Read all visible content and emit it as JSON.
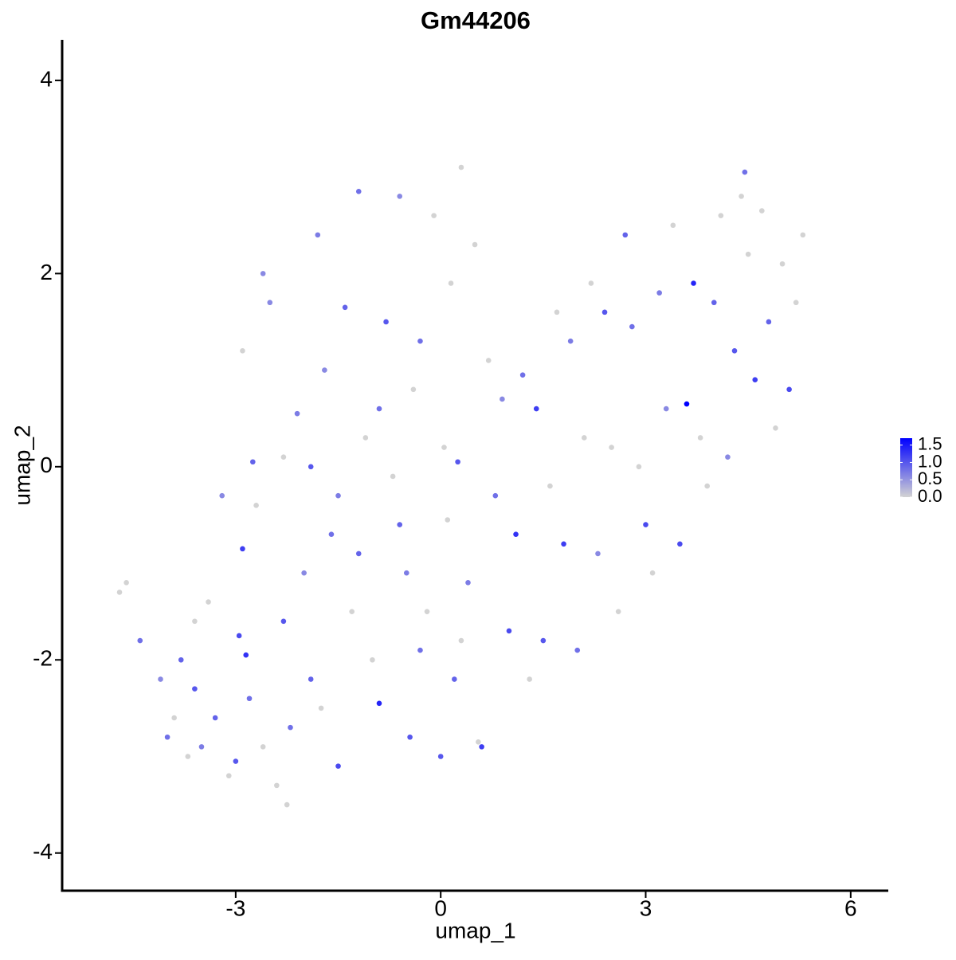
{
  "chart_data": {
    "type": "scatter",
    "title": "Gm44206",
    "x_label": "umap_1",
    "y_label": "umap_2",
    "xlim": [
      -5.54,
      6.55
    ],
    "ylim": [
      -4.39,
      4.42
    ],
    "xticks": [
      -3,
      0,
      3,
      6
    ],
    "yticks": [
      -4,
      -2,
      0,
      2,
      4
    ],
    "color_low": "#d3d3d3",
    "color_high": "#0000ff",
    "colorbar_lim": [
      0,
      1.7
    ],
    "colorbar_ticks": [
      {
        "value": 0,
        "label": "0.0"
      },
      0.5,
      {
        "value": 1,
        "label": "1.0"
      },
      1.5
    ],
    "x": [
      -4.7,
      -4.6,
      -4.4,
      -4.1,
      -3.9,
      -3.8,
      -3.6,
      -3.5,
      -3.4,
      -3.3,
      -3.2,
      -3.1,
      -3.0,
      -2.95,
      -2.9,
      -2.85,
      -2.8,
      -2.75,
      -2.7,
      -2.6,
      -2.5,
      -2.4,
      -2.3,
      -2.25,
      -2.2,
      -2.1,
      -2.0,
      -1.9,
      -1.8,
      -1.75,
      -1.7,
      -1.6,
      -1.5,
      -1.4,
      -1.3,
      -1.2,
      -1.1,
      -1.0,
      -0.9,
      -0.8,
      -0.7,
      -0.6,
      -0.5,
      -0.45,
      -0.4,
      -0.3,
      -0.2,
      -0.1,
      0.0,
      0.05,
      0.1,
      0.15,
      0.2,
      0.25,
      0.3,
      0.4,
      0.5,
      0.55,
      0.6,
      0.7,
      0.8,
      0.9,
      1.0,
      1.1,
      1.2,
      1.3,
      1.4,
      1.5,
      1.6,
      1.7,
      1.8,
      1.9,
      2.0,
      2.1,
      2.2,
      2.3,
      2.4,
      2.5,
      2.6,
      2.7,
      2.8,
      2.9,
      3.0,
      3.1,
      3.2,
      3.3,
      3.4,
      3.5,
      3.6,
      3.7,
      3.8,
      3.9,
      4.0,
      4.1,
      4.2,
      4.3,
      4.4,
      4.45,
      4.5,
      4.6,
      4.7,
      4.8,
      4.9,
      5.0,
      5.1,
      5.2,
      5.3,
      -2.9,
      -2.6,
      -2.3,
      -1.9,
      -1.5,
      -1.2,
      -0.9,
      -0.6,
      -0.3,
      0.3,
      -3.6,
      -4.0,
      -3.7
    ],
    "y": [
      -1.3,
      -1.2,
      -1.8,
      -2.2,
      -2.6,
      -2.0,
      -2.3,
      -2.9,
      -1.4,
      -2.6,
      -0.3,
      -3.2,
      -3.05,
      -1.75,
      -0.85,
      -1.95,
      -2.4,
      0.05,
      -0.4,
      -2.9,
      1.7,
      -3.3,
      -1.6,
      -3.5,
      -2.7,
      0.55,
      -1.1,
      -2.2,
      2.4,
      -2.5,
      1.0,
      -0.7,
      -3.1,
      1.65,
      -1.5,
      2.85,
      0.3,
      -2.0,
      -2.45,
      1.5,
      -0.1,
      2.8,
      -1.1,
      -2.8,
      0.8,
      1.3,
      -1.5,
      2.6,
      -3.0,
      0.2,
      -0.55,
      1.9,
      -2.2,
      0.05,
      3.1,
      -1.2,
      2.3,
      -2.85,
      -2.9,
      1.1,
      -0.3,
      0.7,
      -1.7,
      -0.7,
      0.95,
      -2.2,
      0.6,
      -1.8,
      -0.2,
      1.6,
      -0.8,
      1.3,
      -1.9,
      0.3,
      1.9,
      -0.9,
      1.6,
      0.2,
      -1.5,
      2.4,
      1.45,
      0.0,
      -0.6,
      -1.1,
      1.8,
      0.6,
      2.5,
      -0.8,
      0.65,
      1.9,
      0.3,
      -0.2,
      1.7,
      2.6,
      0.1,
      1.2,
      2.8,
      3.05,
      2.2,
      0.9,
      2.65,
      1.5,
      0.4,
      2.1,
      0.8,
      1.7,
      2.4,
      1.2,
      2.0,
      0.1,
      0.0,
      -0.3,
      -0.9,
      0.6,
      -0.6,
      -1.9,
      -1.8,
      -1.6,
      -2.8,
      -3.0
    ],
    "values": [
      0,
      0,
      0.8,
      0.6,
      0,
      0.9,
      1.0,
      0.7,
      0,
      0.9,
      0.6,
      0,
      1.0,
      1.1,
      1.2,
      1.3,
      0.8,
      0.9,
      0,
      0,
      0.6,
      0,
      1.0,
      0,
      0.8,
      0.7,
      0.6,
      0.9,
      0.7,
      0,
      0.6,
      0.8,
      1.1,
      0.9,
      0,
      0.8,
      0,
      0,
      1.4,
      1.0,
      0,
      0.6,
      0.7,
      1.0,
      0,
      0.8,
      0,
      0,
      1.0,
      0,
      0,
      0,
      0.9,
      1.0,
      0,
      0.7,
      0,
      0,
      1.2,
      0,
      0.8,
      0.6,
      1.1,
      1.3,
      0.8,
      0,
      1.2,
      1.0,
      0,
      0,
      1.2,
      0.7,
      0.8,
      0,
      0,
      0.6,
      1.0,
      0,
      0,
      0.9,
      0.8,
      0,
      1.1,
      0,
      0.7,
      0.6,
      0,
      1.1,
      1.7,
      1.4,
      0,
      0,
      0.9,
      0,
      0.6,
      1.0,
      0,
      0.8,
      0,
      1.2,
      0,
      0.9,
      0,
      0,
      1.1,
      0,
      0,
      0,
      0.6,
      0,
      1.0,
      0.7,
      0.9,
      0.8,
      0.9,
      0.8,
      0,
      0,
      0.8,
      0
    ]
  }
}
